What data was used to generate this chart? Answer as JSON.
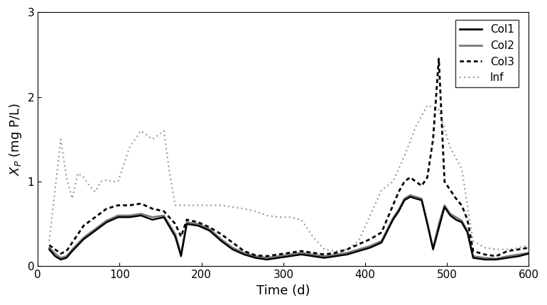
{
  "xlabel": "Time (d)",
  "ylabel": "$X_P$ (mg P/L)",
  "xlim": [
    0,
    600
  ],
  "ylim": [
    0,
    3
  ],
  "yticks": [
    0,
    1,
    2,
    3
  ],
  "xticks": [
    0,
    100,
    200,
    300,
    400,
    500,
    600
  ],
  "col1": {
    "t": [
      14,
      21,
      28,
      35,
      42,
      56,
      70,
      84,
      98,
      112,
      126,
      140,
      154,
      168,
      175,
      182,
      196,
      210,
      224,
      238,
      252,
      266,
      280,
      294,
      308,
      322,
      336,
      350,
      364,
      378,
      392,
      406,
      420,
      434,
      441,
      448,
      455,
      462,
      469,
      476,
      483,
      490,
      497,
      504,
      511,
      518,
      525,
      532,
      546,
      560,
      574,
      588,
      600
    ],
    "v": [
      0.2,
      0.12,
      0.08,
      0.1,
      0.18,
      0.32,
      0.42,
      0.52,
      0.58,
      0.58,
      0.6,
      0.55,
      0.58,
      0.35,
      0.12,
      0.5,
      0.48,
      0.42,
      0.3,
      0.2,
      0.14,
      0.1,
      0.08,
      0.1,
      0.12,
      0.14,
      0.12,
      0.1,
      0.12,
      0.14,
      0.18,
      0.22,
      0.28,
      0.55,
      0.65,
      0.78,
      0.82,
      0.8,
      0.78,
      0.5,
      0.2,
      0.45,
      0.7,
      0.6,
      0.55,
      0.52,
      0.4,
      0.1,
      0.08,
      0.08,
      0.1,
      0.12,
      0.15
    ]
  },
  "col2": {
    "t": [
      14,
      21,
      28,
      35,
      42,
      56,
      70,
      84,
      98,
      112,
      126,
      140,
      154,
      168,
      175,
      182,
      196,
      210,
      224,
      238,
      252,
      266,
      280,
      294,
      308,
      322,
      336,
      350,
      364,
      378,
      392,
      406,
      420,
      434,
      441,
      448,
      455,
      462,
      469,
      476,
      483,
      490,
      497,
      504,
      511,
      518,
      525,
      532,
      546,
      560,
      574,
      588,
      600
    ],
    "v": [
      0.22,
      0.15,
      0.1,
      0.12,
      0.2,
      0.34,
      0.44,
      0.54,
      0.6,
      0.6,
      0.62,
      0.58,
      0.6,
      0.38,
      0.15,
      0.52,
      0.5,
      0.44,
      0.32,
      0.22,
      0.16,
      0.12,
      0.1,
      0.12,
      0.14,
      0.16,
      0.14,
      0.12,
      0.14,
      0.16,
      0.2,
      0.24,
      0.3,
      0.57,
      0.67,
      0.8,
      0.84,
      0.82,
      0.8,
      0.52,
      0.22,
      0.5,
      0.72,
      0.62,
      0.58,
      0.54,
      0.42,
      0.12,
      0.1,
      0.09,
      0.12,
      0.14,
      0.16
    ]
  },
  "col3": {
    "t": [
      14,
      21,
      28,
      35,
      42,
      56,
      70,
      84,
      98,
      112,
      126,
      140,
      154,
      168,
      175,
      182,
      196,
      210,
      224,
      238,
      252,
      266,
      280,
      294,
      308,
      322,
      336,
      350,
      364,
      378,
      392,
      406,
      420,
      434,
      441,
      448,
      455,
      462,
      469,
      476,
      483,
      490,
      497,
      504,
      511,
      518,
      525,
      532,
      546,
      560,
      574,
      588,
      600
    ],
    "v": [
      0.25,
      0.2,
      0.15,
      0.18,
      0.28,
      0.48,
      0.58,
      0.68,
      0.72,
      0.72,
      0.74,
      0.68,
      0.65,
      0.5,
      0.35,
      0.55,
      0.52,
      0.46,
      0.38,
      0.28,
      0.18,
      0.13,
      0.12,
      0.14,
      0.16,
      0.18,
      0.16,
      0.14,
      0.16,
      0.2,
      0.26,
      0.32,
      0.4,
      0.72,
      0.88,
      1.0,
      1.05,
      1.0,
      0.95,
      1.05,
      1.5,
      2.45,
      1.0,
      0.9,
      0.8,
      0.72,
      0.55,
      0.18,
      0.14,
      0.12,
      0.18,
      0.2,
      0.22
    ]
  },
  "inf": {
    "t": [
      14,
      21,
      28,
      35,
      42,
      49,
      56,
      63,
      70,
      77,
      84,
      91,
      98,
      105,
      112,
      119,
      126,
      133,
      140,
      147,
      154,
      161,
      168,
      175,
      182,
      196,
      210,
      224,
      238,
      252,
      266,
      280,
      294,
      308,
      322,
      336,
      350,
      364,
      378,
      392,
      406,
      420,
      434,
      448,
      462,
      476,
      490,
      504,
      518,
      532,
      546,
      560,
      574,
      588,
      600
    ],
    "v": [
      0.3,
      0.9,
      1.5,
      1.05,
      0.8,
      1.1,
      1.05,
      0.95,
      0.88,
      1.0,
      1.02,
      1.0,
      1.0,
      1.2,
      1.4,
      1.5,
      1.6,
      1.55,
      1.5,
      1.55,
      1.6,
      1.1,
      0.72,
      0.72,
      0.72,
      0.72,
      0.72,
      0.72,
      0.7,
      0.68,
      0.65,
      0.6,
      0.58,
      0.58,
      0.55,
      0.35,
      0.2,
      0.18,
      0.2,
      0.3,
      0.6,
      0.9,
      1.0,
      1.3,
      1.65,
      1.9,
      1.85,
      1.4,
      1.15,
      0.3,
      0.22,
      0.2,
      0.2,
      0.22,
      0.25
    ]
  },
  "col1_color": "#000000",
  "col2_color": "#777777",
  "col3_color": "#000000",
  "inf_color": "#999999"
}
